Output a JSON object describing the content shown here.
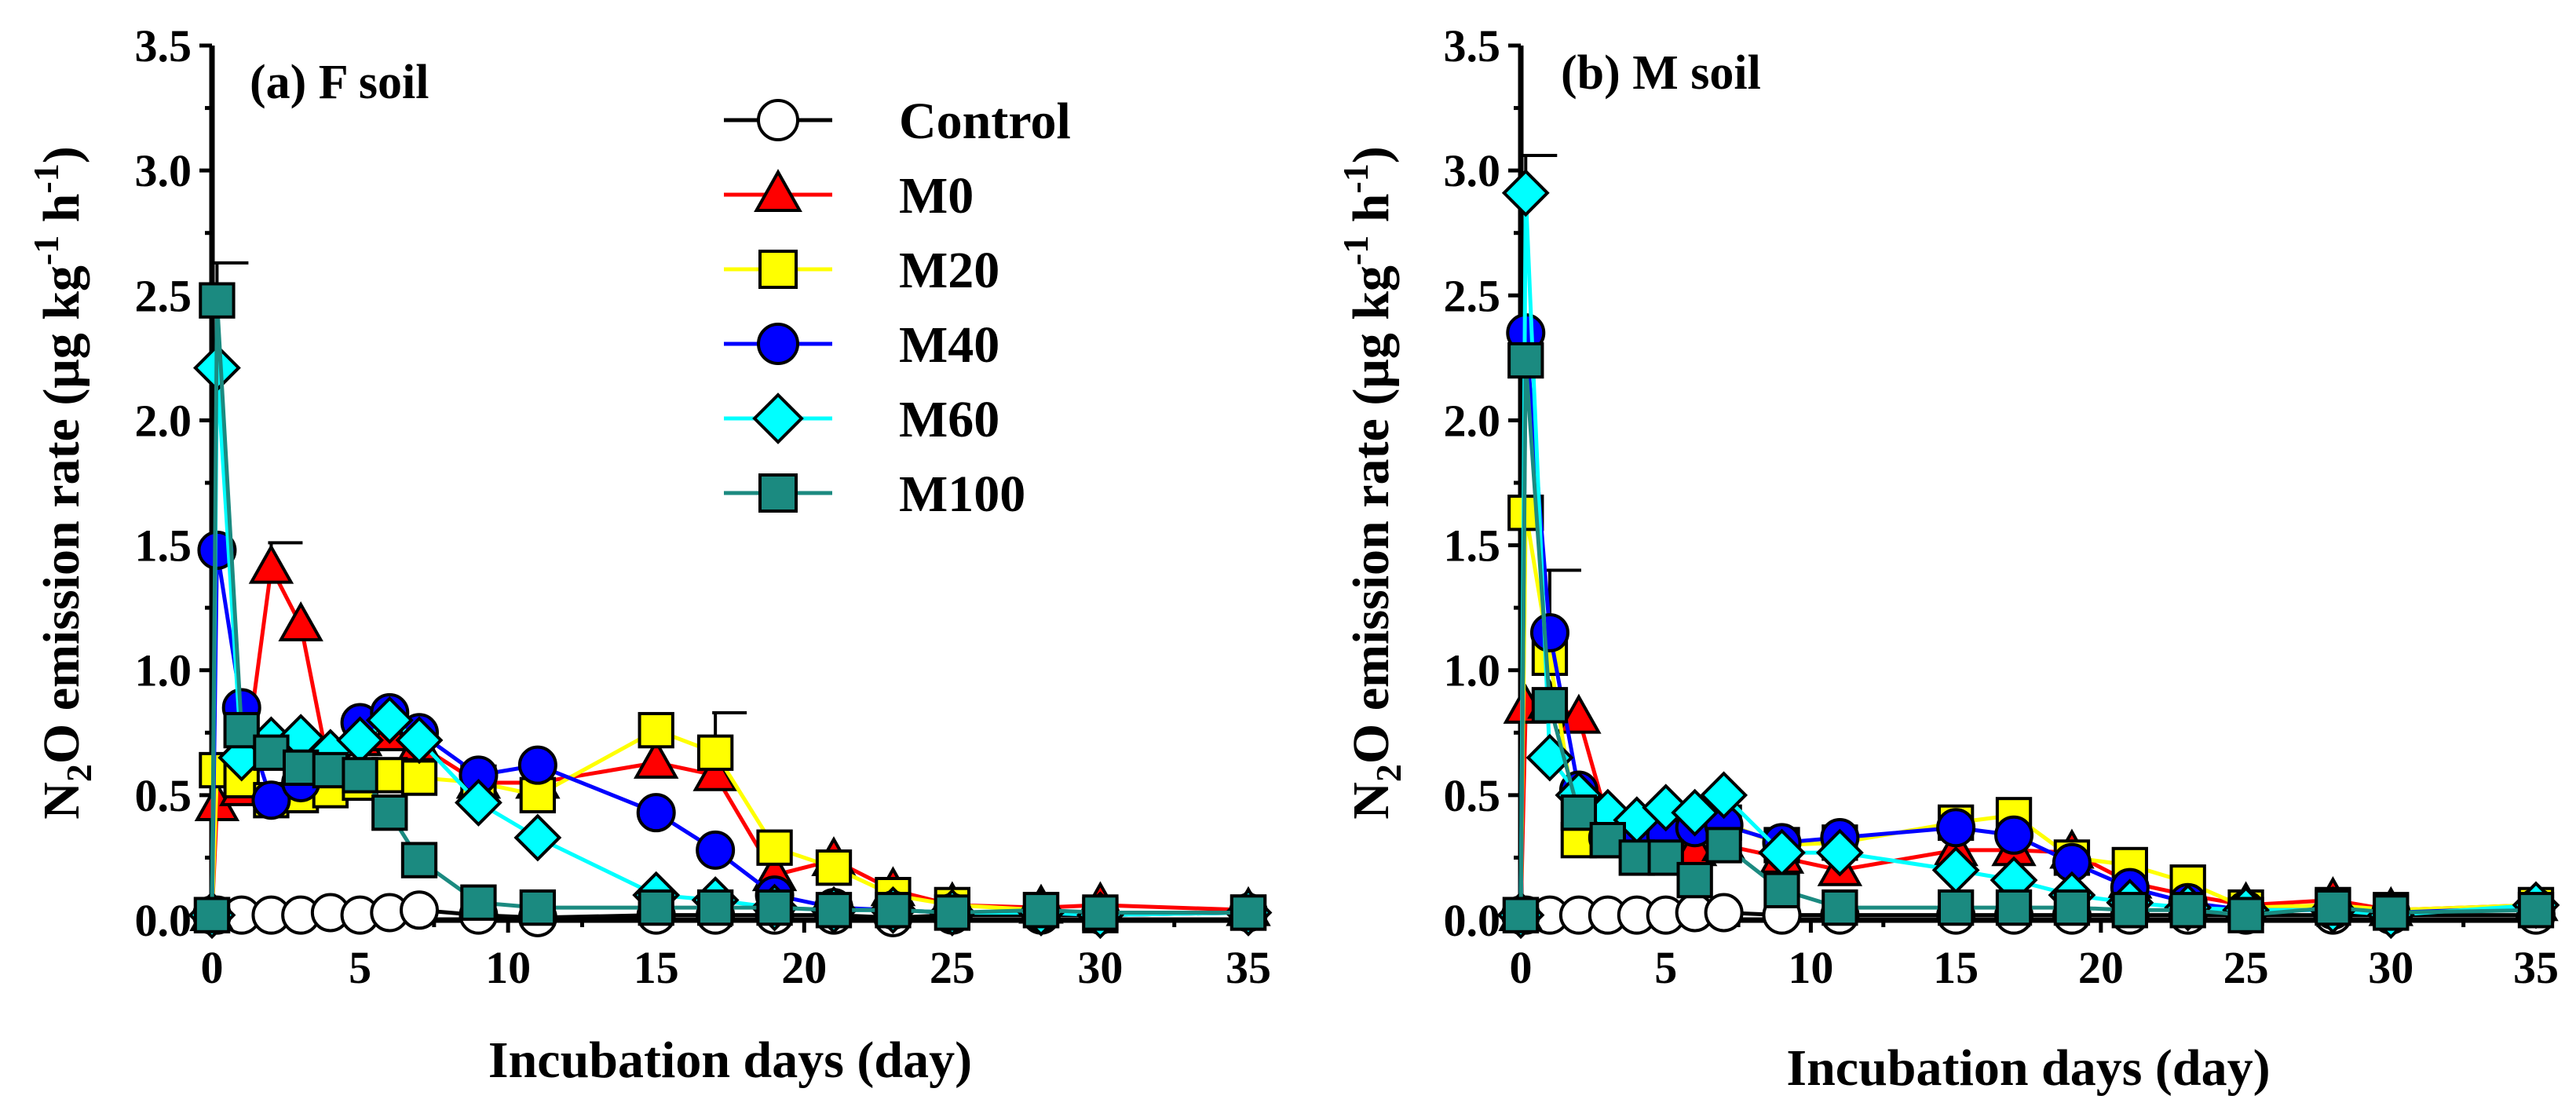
{
  "chart_data": [
    {
      "type": "line",
      "panel": "a",
      "title": "(a) F soil",
      "xlabel": "Incubation days (day)",
      "ylabel": "N2O emission rate (μg kg-1 h-1)",
      "ylabel_parts": {
        "pre": "N",
        "sub": "2",
        "mid": "O emission rate (μg kg",
        "sup1": "-1",
        "mid2": " h",
        "sup2": "-1",
        "post": ")"
      },
      "xlim": [
        0,
        35
      ],
      "ylim": [
        0,
        3.5
      ],
      "xticks": [
        0,
        5,
        10,
        15,
        20,
        25,
        30,
        35
      ],
      "yticks": [
        0,
        0.5,
        1.0,
        1.5,
        2.0,
        2.5,
        3.0,
        3.5
      ],
      "ytick_labels": [
        "0.0",
        "0.5",
        "1.0",
        "1.5",
        "2.0",
        "2.5",
        "3.0",
        "3.5"
      ],
      "x": [
        0,
        0.17,
        1,
        2,
        3,
        4,
        5,
        6,
        7,
        9,
        11,
        15,
        17,
        19,
        21,
        23,
        25,
        28,
        30,
        35
      ],
      "series": [
        {
          "name": "Control",
          "values": [
            0.02,
            0.02,
            0.02,
            0.02,
            0.02,
            0.03,
            0.02,
            0.03,
            0.04,
            0.02,
            0.01,
            0.02,
            0.02,
            0.02,
            0.02,
            0.01,
            0.02,
            0.02,
            0.02,
            0.03
          ]
        },
        {
          "name": "M0",
          "values": [
            0.02,
            0.46,
            0.52,
            1.41,
            1.18,
            0.58,
            0.72,
            0.74,
            0.7,
            0.55,
            0.55,
            0.63,
            0.58,
            0.18,
            0.24,
            0.12,
            0.06,
            0.05,
            0.06,
            0.04
          ]
        },
        {
          "name": "M20",
          "values": [
            0.02,
            0.6,
            0.56,
            0.48,
            0.5,
            0.52,
            0.55,
            0.58,
            0.57,
            0.55,
            0.5,
            0.76,
            0.67,
            0.29,
            0.21,
            0.1,
            0.06,
            0.04,
            0.02,
            0.03
          ]
        },
        {
          "name": "M40",
          "values": [
            0.02,
            1.48,
            0.85,
            0.48,
            0.55,
            0.63,
            0.79,
            0.83,
            0.75,
            0.58,
            0.62,
            0.43,
            0.28,
            0.1,
            0.05,
            0.04,
            0.03,
            0.03,
            0.02,
            0.03
          ]
        },
        {
          "name": "M60",
          "values": [
            0.02,
            2.21,
            0.65,
            0.72,
            0.73,
            0.67,
            0.72,
            0.8,
            0.72,
            0.47,
            0.33,
            0.1,
            0.08,
            0.05,
            0.04,
            0.04,
            0.03,
            0.03,
            0.02,
            0.03
          ]
        },
        {
          "name": "M100",
          "values": [
            0.02,
            2.48,
            0.76,
            0.67,
            0.61,
            0.6,
            0.58,
            0.43,
            0.24,
            0.07,
            0.05,
            0.05,
            0.05,
            0.05,
            0.04,
            0.04,
            0.03,
            0.04,
            0.03,
            0.03
          ]
        }
      ],
      "error_bars": [
        {
          "series": "M0",
          "x": 2,
          "top": 1.51
        },
        {
          "series": "M0",
          "x": 17,
          "top": 0.83
        },
        {
          "series": "M100",
          "x": 0.17,
          "top": 2.63
        }
      ]
    },
    {
      "type": "line",
      "panel": "b",
      "title": "(b) M soil",
      "xlabel": "Incubation days (day)",
      "ylabel": "N2O emission rate (μg kg-1 h-1)",
      "ylabel_parts": {
        "pre": "N",
        "sub": "2",
        "mid": "O emission rate (μg kg",
        "sup1": "-1",
        "mid2": " h",
        "sup2": "-1",
        "post": ")"
      },
      "xlim": [
        0,
        35
      ],
      "ylim": [
        0,
        3.5
      ],
      "xticks": [
        0,
        5,
        10,
        15,
        20,
        25,
        30,
        35
      ],
      "yticks": [
        0,
        0.5,
        1.0,
        1.5,
        2.0,
        2.5,
        3.0,
        3.5
      ],
      "ytick_labels": [
        "0.0",
        "0.5",
        "1.0",
        "1.5",
        "2.0",
        "2.5",
        "3.0",
        "3.5"
      ],
      "x": [
        0,
        0.17,
        1,
        2,
        3,
        4,
        5,
        6,
        7,
        9,
        11,
        15,
        17,
        19,
        21,
        23,
        25,
        28,
        30,
        35
      ],
      "series": [
        {
          "name": "Control",
          "values": [
            0.02,
            0.02,
            0.02,
            0.02,
            0.02,
            0.02,
            0.02,
            0.03,
            0.03,
            0.02,
            0.02,
            0.02,
            0.02,
            0.02,
            0.02,
            0.02,
            0.02,
            0.02,
            0.02,
            0.02
          ]
        },
        {
          "name": "M0",
          "values": [
            0.02,
            0.85,
            0.87,
            0.81,
            0.4,
            0.35,
            0.33,
            0.28,
            0.3,
            0.25,
            0.2,
            0.28,
            0.28,
            0.27,
            0.15,
            0.1,
            0.06,
            0.08,
            0.04,
            0.06
          ]
        },
        {
          "name": "M20",
          "values": [
            0.02,
            1.63,
            1.05,
            0.32,
            0.32,
            0.33,
            0.36,
            0.4,
            0.39,
            0.3,
            0.31,
            0.39,
            0.42,
            0.25,
            0.22,
            0.15,
            0.05,
            0.06,
            0.04,
            0.06
          ]
        },
        {
          "name": "M40",
          "values": [
            0.02,
            2.35,
            1.15,
            0.52,
            0.33,
            0.33,
            0.34,
            0.37,
            0.38,
            0.31,
            0.33,
            0.37,
            0.34,
            0.23,
            0.13,
            0.07,
            0.04,
            0.04,
            0.03,
            0.05
          ]
        },
        {
          "name": "M60",
          "values": [
            0.02,
            2.91,
            0.65,
            0.5,
            0.43,
            0.4,
            0.45,
            0.43,
            0.5,
            0.27,
            0.27,
            0.2,
            0.16,
            0.1,
            0.07,
            0.05,
            0.04,
            0.04,
            0.02,
            0.06
          ]
        },
        {
          "name": "M100",
          "values": [
            0.02,
            2.24,
            0.86,
            0.43,
            0.32,
            0.25,
            0.25,
            0.16,
            0.3,
            0.12,
            0.05,
            0.05,
            0.05,
            0.05,
            0.04,
            0.04,
            0.02,
            0.05,
            0.03,
            0.04
          ]
        }
      ],
      "error_bars": [
        {
          "series": "M60",
          "x": 0.17,
          "top": 3.06
        },
        {
          "series": "M40",
          "x": 1,
          "top": 1.4
        }
      ]
    }
  ],
  "legend": {
    "position": "top-right of panel a",
    "items": [
      {
        "name": "Control",
        "marker": "circle",
        "color": "#ffffff",
        "line": "#000000"
      },
      {
        "name": "M0",
        "marker": "triangle",
        "color": "#ff0000",
        "line": "#ff0000"
      },
      {
        "name": "M20",
        "marker": "square",
        "color": "#ffff00",
        "line": "#ffff00"
      },
      {
        "name": "M40",
        "marker": "circle",
        "color": "#0000ff",
        "line": "#0000ff"
      },
      {
        "name": "M60",
        "marker": "diamond",
        "color": "#00ffff",
        "line": "#00ffff"
      },
      {
        "name": "M100",
        "marker": "square",
        "color": "#1b8a80",
        "line": "#1b8a80"
      }
    ]
  }
}
